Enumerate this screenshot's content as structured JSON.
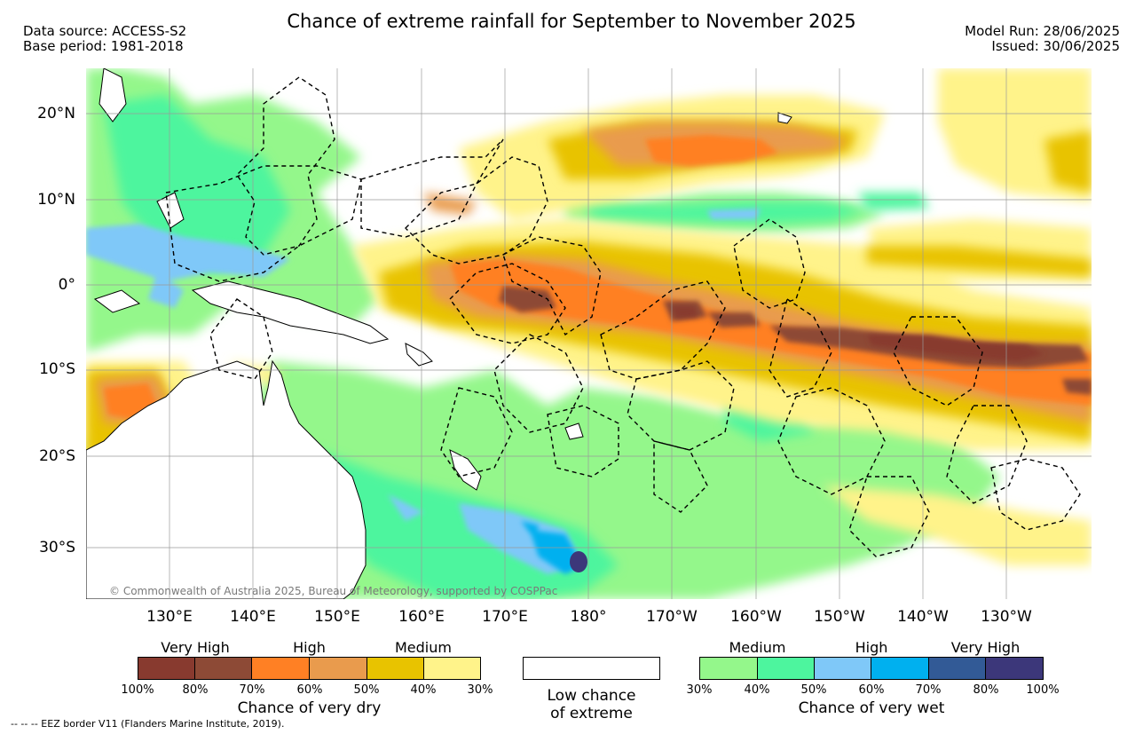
{
  "header": {
    "title": "Chance of extreme rainfall for September to November 2025",
    "data_source": "Data source: ACCESS-S2",
    "base_period": "Base period: 1981-2018",
    "model_run": "Model Run: 28/06/2025",
    "issued": "Issued: 30/06/2025"
  },
  "map": {
    "lat_labels": [
      "20°N",
      "10°N",
      "0°",
      "10°S",
      "20°S",
      "30°S"
    ],
    "lon_labels": [
      "130°E",
      "140°E",
      "150°E",
      "160°E",
      "170°E",
      "180°",
      "170°W",
      "160°W",
      "150°W",
      "140°W",
      "130°W"
    ],
    "copyright": "© Commonwealth of Australia 2025, Bureau of Meteorology, supported by COSPPac",
    "grid": true
  },
  "legend_dry": {
    "categories": [
      "Very High",
      "High",
      "Medium"
    ],
    "colors": [
      "#883a2f",
      "#8d4a36",
      "#ff8024",
      "#e99b4d",
      "#e8c300",
      "#fff38a"
    ],
    "ticks": [
      "100%",
      "80%",
      "70%",
      "60%",
      "50%",
      "40%",
      "30%"
    ],
    "title": "Chance of very dry"
  },
  "legend_low": {
    "line1": "Low chance",
    "line2": "of extreme"
  },
  "legend_wet": {
    "categories": [
      "Medium",
      "High",
      "Very High"
    ],
    "colors": [
      "#94f78b",
      "#4df59e",
      "#7fc8f8",
      "#00b0ef",
      "#325a96",
      "#3c377a"
    ],
    "ticks": [
      "30%",
      "40%",
      "50%",
      "60%",
      "70%",
      "80%",
      "100%"
    ],
    "title": "Chance of very wet"
  },
  "footnote": "--  --  -- EEZ border V11 (Flanders Marine Institute, 2019)."
}
